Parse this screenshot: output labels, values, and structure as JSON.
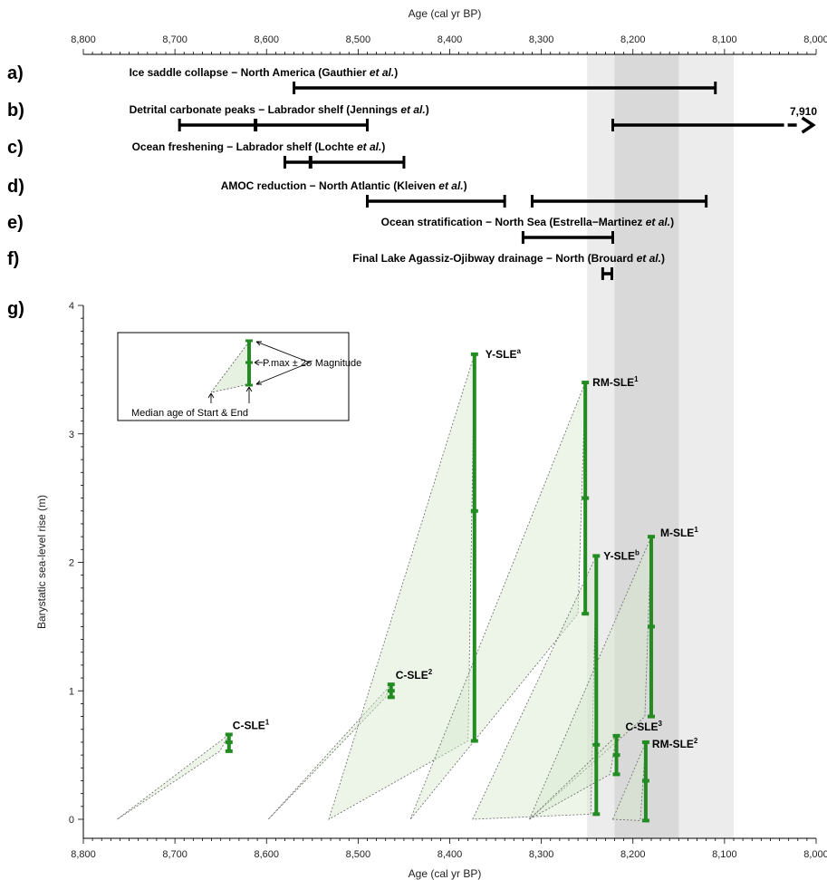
{
  "chart_data": {
    "type": "scatter",
    "top_axis_title": "Age (cal yr BP)",
    "x_axis_title": "Age (cal yr BP)",
    "y_axis_title": "Barystatic sea-level rise (m)",
    "x_range": [
      8800,
      8000
    ],
    "x_reversed": true,
    "y_range": [
      0,
      4
    ],
    "x_ticks": [
      {
        "value": 8800,
        "label": "8,800"
      },
      {
        "value": 8700,
        "label": "8,700"
      },
      {
        "value": 8600,
        "label": "8,600"
      },
      {
        "value": 8500,
        "label": "8,500"
      },
      {
        "value": 8400,
        "label": "8,400"
      },
      {
        "value": 8300,
        "label": "8,300"
      },
      {
        "value": 8200,
        "label": "8,200"
      },
      {
        "value": 8100,
        "label": "8,100"
      },
      {
        "value": 8000,
        "label": "8,000"
      }
    ],
    "y_ticks": [
      {
        "value": 0,
        "label": "0"
      },
      {
        "value": 1,
        "label": "1"
      },
      {
        "value": 2,
        "label": "2"
      },
      {
        "value": 3,
        "label": "3"
      },
      {
        "value": 4,
        "label": "4"
      }
    ],
    "shaded_bands": [
      {
        "from": 8250,
        "to": 8090,
        "shade": "light"
      },
      {
        "from": 8220,
        "to": 8150,
        "shade": "dark"
      }
    ],
    "event_panels": [
      {
        "letter": "a)",
        "label_pre": "Ice saddle collapse − North America (Gauthier ",
        "label_em": "et al.",
        "label_post": ")",
        "label_at": 8750,
        "bars": [
          {
            "start": 8570,
            "end": 8110,
            "marks": []
          }
        ]
      },
      {
        "letter": "b)",
        "label_pre": "Detrital carbonate peaks − Labrador shelf (Jennings ",
        "label_em": "et al.",
        "label_post": ")",
        "label_at": 8750,
        "bars": [
          {
            "start": 8695,
            "end": 8490,
            "marks": [
              8612
            ]
          },
          {
            "start": 8222,
            "end": 8035,
            "marks": [],
            "continues_to": 7910
          }
        ],
        "arrow_label": "7,910"
      },
      {
        "letter": "c)",
        "label_pre": "Ocean freshening − Labrador shelf (Lochte ",
        "label_em": "et al.",
        "label_post": ")",
        "label_at": 8747,
        "bars": [
          {
            "start": 8580,
            "end": 8450,
            "marks": [
              8552
            ]
          }
        ]
      },
      {
        "letter": "d)",
        "label_pre": "AMOC reduction − North Atlantic (Kleiven ",
        "label_em": "et al.",
        "label_post": ")",
        "label_at": 8650,
        "bars": [
          {
            "start": 8490,
            "end": 8340,
            "marks": []
          },
          {
            "start": 8310,
            "end": 8120,
            "marks": []
          }
        ]
      },
      {
        "letter": "e)",
        "label_pre": "Ocean stratification − North Sea (Estrella−Martinez ",
        "label_em": "et al.",
        "label_post": ")",
        "label_at": 8475,
        "bars": [
          {
            "start": 8320,
            "end": 8222,
            "marks": []
          }
        ]
      },
      {
        "letter": "f)",
        "label_pre": "Final Lake Agassiz-Ojibway drainage − North (Brouard ",
        "label_em": "et al.",
        "label_post": ")",
        "label_at": 8506,
        "bars": [
          {
            "start": 8233,
            "end": 8223,
            "marks": []
          }
        ]
      }
    ],
    "panel_g_letter": "g)",
    "sle_series": [
      {
        "label": "C-SLE",
        "sup": "1",
        "age": 8641,
        "low": 0.53,
        "median": 0.6,
        "high": 0.66,
        "start_age": 8763,
        "end_age": 8651
      },
      {
        "label": "C-SLE",
        "sup": "2",
        "age": 8464,
        "low": 0.95,
        "median": 1.0,
        "high": 1.05,
        "start_age": 8598,
        "end_age": 8470
      },
      {
        "label": "Y-SLE",
        "sup": "a",
        "age": 8373,
        "low": 0.61,
        "median": 2.4,
        "high": 3.62,
        "start_age": 8532,
        "end_age": 8380
      },
      {
        "label": "RM-SLE",
        "sup": "1",
        "age": 8252,
        "low": 1.6,
        "median": 2.5,
        "high": 3.4,
        "start_age": 8443,
        "end_age": 8260
      },
      {
        "label": "Y-SLE",
        "sup": "b",
        "age": 8240,
        "low": 0.04,
        "median": 0.58,
        "high": 2.05,
        "start_age": 8375,
        "end_age": 8246
      },
      {
        "label": "M-SLE",
        "sup": "1",
        "age": 8180,
        "low": 0.8,
        "median": 1.5,
        "high": 2.2,
        "start_age": 8313,
        "end_age": 8187
      },
      {
        "label": "C-SLE",
        "sup": "3",
        "age": 8218,
        "low": 0.35,
        "median": 0.5,
        "high": 0.65,
        "start_age": 8313,
        "end_age": 8225
      },
      {
        "label": "RM-SLE",
        "sup": "2",
        "age": 8186,
        "low": -0.01,
        "median": 0.3,
        "high": 0.6,
        "start_age": 8222,
        "end_age": 8192
      }
    ],
    "legend_inset": {
      "magnitude_label": "P.max ± 2σ Magnitude",
      "age_label": "Median age of Start & End"
    },
    "colors": {
      "sle_bar": "#228B22",
      "triangle_fill": "#d7e8cf",
      "band_light": "#ececec",
      "band_dark": "#d9d9d9",
      "event_bar": "#000000"
    }
  }
}
